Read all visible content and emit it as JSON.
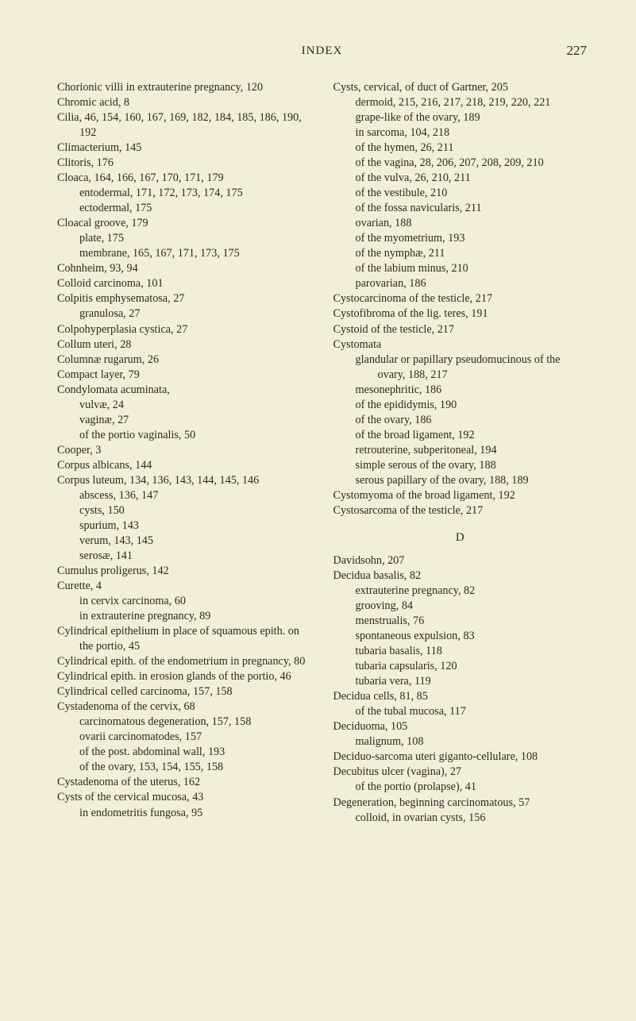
{
  "header": {
    "title": "INDEX",
    "page_number": "227"
  },
  "left_entries": [
    {
      "cls": "entry",
      "t": "Chorionic villi in extrauterine pregnancy, 120"
    },
    {
      "cls": "entry",
      "t": "Chromic acid, 8"
    },
    {
      "cls": "entry",
      "t": "Cilia, 46, 154, 160, 167, 169, 182, 184, 185, 186, 190, 192"
    },
    {
      "cls": "entry",
      "t": "Climacterium, 145"
    },
    {
      "cls": "entry",
      "t": "Clitoris, 176"
    },
    {
      "cls": "entry",
      "t": "Cloaca, 164, 166, 167, 170, 171, 179"
    },
    {
      "cls": "sub1",
      "t": "entodermal, 171, 172, 173, 174, 175"
    },
    {
      "cls": "sub1",
      "t": "ectodermal, 175"
    },
    {
      "cls": "entry",
      "t": "Cloacal groove, 179"
    },
    {
      "cls": "sub1",
      "t": "plate, 175"
    },
    {
      "cls": "sub1",
      "t": "membrane, 165, 167, 171, 173, 175"
    },
    {
      "cls": "entry",
      "t": "Cohnheim, 93, 94"
    },
    {
      "cls": "entry",
      "t": "Colloid carcinoma, 101"
    },
    {
      "cls": "entry",
      "t": "Colpitis emphysematosa, 27"
    },
    {
      "cls": "sub1",
      "t": "granulosa, 27"
    },
    {
      "cls": "entry",
      "t": "Colpohyperplasia cystica, 27"
    },
    {
      "cls": "entry",
      "t": "Collum uteri, 28"
    },
    {
      "cls": "entry",
      "t": "Columnæ rugarum, 26"
    },
    {
      "cls": "entry",
      "t": "Compact layer, 79"
    },
    {
      "cls": "entry",
      "t": "Condylomata acuminata,"
    },
    {
      "cls": "sub1",
      "t": "vulvæ, 24"
    },
    {
      "cls": "sub1",
      "t": "vaginæ, 27"
    },
    {
      "cls": "sub1",
      "t": "of the portio vaginalis, 50"
    },
    {
      "cls": "entry",
      "t": "Cooper, 3"
    },
    {
      "cls": "entry",
      "t": "Corpus albicans, 144"
    },
    {
      "cls": "entry",
      "t": "Corpus luteum, 134, 136, 143, 144, 145, 146"
    },
    {
      "cls": "sub1",
      "t": "abscess, 136, 147"
    },
    {
      "cls": "sub1",
      "t": "cysts, 150"
    },
    {
      "cls": "sub1",
      "t": "spurium, 143"
    },
    {
      "cls": "sub1",
      "t": "verum, 143, 145"
    },
    {
      "cls": "sub1",
      "t": "serosæ, 141"
    },
    {
      "cls": "entry",
      "t": "Cumulus proligerus, 142"
    },
    {
      "cls": "entry",
      "t": "Curette, 4"
    },
    {
      "cls": "sub1",
      "t": "in cervix carcinoma, 60"
    },
    {
      "cls": "sub1",
      "t": "in extrauterine pregnancy, 89"
    },
    {
      "cls": "entry",
      "t": "Cylindrical epithelium in place of squamous epith. on the portio, 45"
    },
    {
      "cls": "entry",
      "t": "Cylindrical epith. of the endometrium in pregnancy, 80"
    },
    {
      "cls": "entry",
      "t": "Cylindrical epith. in erosion glands of the portio, 46"
    },
    {
      "cls": "entry",
      "t": "Cylindrical celled carcinoma, 157, 158"
    },
    {
      "cls": "entry",
      "t": "Cystadenoma of the cervix, 68"
    },
    {
      "cls": "sub1",
      "t": "carcinomatous degeneration, 157, 158"
    },
    {
      "cls": "sub1",
      "t": "ovarii carcinomatodes, 157"
    },
    {
      "cls": "sub1",
      "t": "of the post. abdominal wall, 193"
    },
    {
      "cls": "sub1",
      "t": "of the ovary, 153, 154, 155, 158"
    },
    {
      "cls": "entry",
      "t": "Cystadenoma of the uterus, 162"
    },
    {
      "cls": "entry",
      "t": "Cysts of the cervical mucosa, 43"
    },
    {
      "cls": "sub1",
      "t": "in endometritis fungosa, 95"
    }
  ],
  "right_entries": [
    {
      "cls": "entry",
      "t": "Cysts, cervical, of duct of Gartner, 205"
    },
    {
      "cls": "sub1",
      "t": "dermoid, 215, 216, 217, 218, 219, 220, 221"
    },
    {
      "cls": "sub1",
      "t": "grape-like of the ovary, 189"
    },
    {
      "cls": "sub1",
      "t": "in sarcoma, 104, 218"
    },
    {
      "cls": "sub1",
      "t": "of the hymen, 26, 211"
    },
    {
      "cls": "sub1",
      "t": "of the vagina, 28, 206, 207, 208, 209, 210"
    },
    {
      "cls": "sub1",
      "t": "of the vulva, 26, 210, 211"
    },
    {
      "cls": "sub1",
      "t": "of the vestibule, 210"
    },
    {
      "cls": "sub1",
      "t": "of the fossa navicularis, 211"
    },
    {
      "cls": "sub1",
      "t": "ovarian, 188"
    },
    {
      "cls": "sub1",
      "t": "of the myometrium, 193"
    },
    {
      "cls": "sub1",
      "t": "of the nymphæ, 211"
    },
    {
      "cls": "sub1",
      "t": "of the labium minus, 210"
    },
    {
      "cls": "sub1",
      "t": "parovarian, 186"
    },
    {
      "cls": "entry",
      "t": "Cystocarcinoma of the testicle, 217"
    },
    {
      "cls": "entry",
      "t": "Cystofibroma of the lig. teres, 191"
    },
    {
      "cls": "entry",
      "t": "Cystoid of the testicle, 217"
    },
    {
      "cls": "entry",
      "t": "Cystomata"
    },
    {
      "cls": "sub1",
      "t": "glandular or papillary pseudomucinous of the ovary, 188, 217"
    },
    {
      "cls": "sub1",
      "t": "mesonephritic, 186"
    },
    {
      "cls": "sub1",
      "t": "of the epididymis, 190"
    },
    {
      "cls": "sub1",
      "t": "of the ovary, 186"
    },
    {
      "cls": "sub1",
      "t": "of the broad ligament, 192"
    },
    {
      "cls": "sub1",
      "t": "retrouterine, subperitoneal, 194"
    },
    {
      "cls": "sub1",
      "t": "simple serous of the ovary, 188"
    },
    {
      "cls": "sub1",
      "t": "serous papillary of the ovary, 188, 189"
    },
    {
      "cls": "entry",
      "t": "Cystomyoma of the broad ligament, 192"
    },
    {
      "cls": "entry",
      "t": "Cystosarcoma of the testicle, 217"
    },
    {
      "cls": "section",
      "t": "D"
    },
    {
      "cls": "entry",
      "t": "Davidsohn, 207"
    },
    {
      "cls": "entry",
      "t": "Decidua basalis, 82"
    },
    {
      "cls": "sub1",
      "t": "extrauterine pregnancy, 82"
    },
    {
      "cls": "sub1",
      "t": "grooving, 84"
    },
    {
      "cls": "sub1",
      "t": "menstrualis, 76"
    },
    {
      "cls": "sub1",
      "t": "spontaneous expulsion, 83"
    },
    {
      "cls": "sub1",
      "t": "tubaria basalis, 118"
    },
    {
      "cls": "sub1",
      "t": "tubaria capsularis, 120"
    },
    {
      "cls": "sub1",
      "t": "tubaria vera, 119"
    },
    {
      "cls": "entry",
      "t": "Decidua cells, 81, 85"
    },
    {
      "cls": "sub1",
      "t": "of the tubal mucosa, 117"
    },
    {
      "cls": "entry",
      "t": "Deciduoma, 105"
    },
    {
      "cls": "sub1",
      "t": "malignum, 108"
    },
    {
      "cls": "entry",
      "t": "Deciduo-sarcoma uteri giganto-cellulare, 108"
    },
    {
      "cls": "entry",
      "t": "Decubitus ulcer (vagina), 27"
    },
    {
      "cls": "sub1",
      "t": "of the portio (prolapse), 41"
    },
    {
      "cls": "entry",
      "t": "Degeneration, beginning carcinomatous, 57"
    },
    {
      "cls": "sub1",
      "t": "colloid, in ovarian cysts, 156"
    }
  ]
}
